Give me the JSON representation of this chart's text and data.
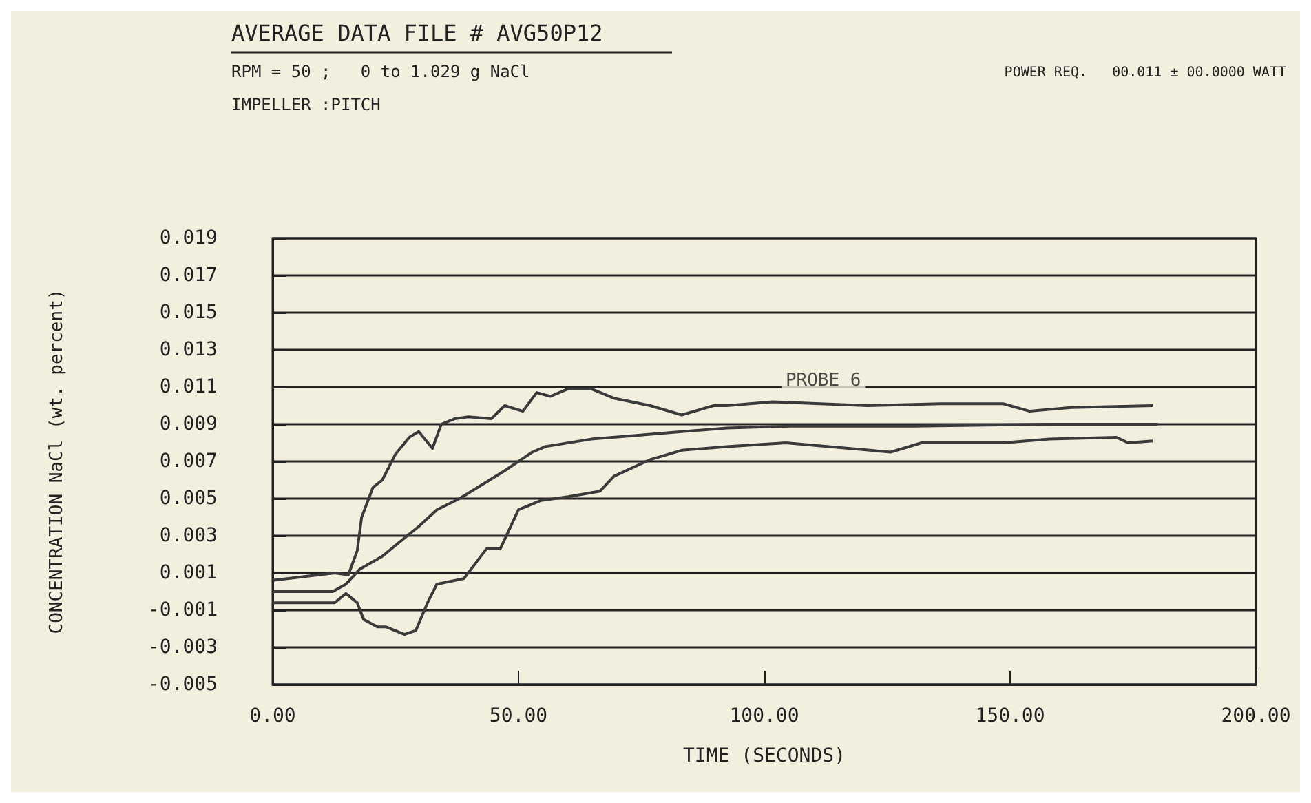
{
  "chart_data": {
    "type": "line",
    "title": "AVERAGE DATA FILE # AVG50P12",
    "subtitle": "RPM = 50 ;   0 to 1.029 g NaCl",
    "annotations": [
      "IMPELLER :PITCH",
      "POWER REQ.   00.011 ± 00.0000 WATT",
      {
        "text": "PROBE 6",
        "x": 112,
        "y": 0.0102
      }
    ],
    "xlabel": "TIME (SECONDS)",
    "ylabel": "CONCENTRATION NaCl (wt. percent)",
    "series": [
      {
        "color": "#3a3a3a",
        "x": [
          0,
          12.6,
          15.4,
          17.2,
          18.1,
          20.4,
          22.3,
          25.0,
          27.8,
          29.7,
          32.5,
          34.3,
          37.1,
          39.8,
          44.5,
          47.2,
          50.9,
          53.7,
          56.5,
          60.1,
          64.8,
          69.4,
          76.8,
          83.2,
          89.7,
          92.4,
          101.7,
          121,
          135.8,
          148.6,
          154,
          162.4,
          179
        ],
        "values": [
          0.0006,
          0.001,
          0.0009,
          0.0022,
          0.004,
          0.0056,
          0.006,
          0.0074,
          0.0083,
          0.0086,
          0.0077,
          0.009,
          0.0093,
          0.0094,
          0.0093,
          0.01,
          0.0097,
          0.0107,
          0.0105,
          0.0109,
          0.0109,
          0.0104,
          0.01,
          0.0095,
          0.01,
          0.01,
          0.0102,
          0.01,
          0.0101,
          0.0101,
          0.0097,
          0.0099,
          0.01
        ]
      },
      {
        "color": "#3a3a3a",
        "x": [
          0,
          12.2,
          14.9,
          17.7,
          22.3,
          26.9,
          29.7,
          33.4,
          38.0,
          41.7,
          47.2,
          52.8,
          55.5,
          64.8,
          74.0,
          83.2,
          92.4,
          105.3,
          130.3,
          158,
          180
        ],
        "values": [
          0.0,
          0.0,
          0.0004,
          0.0012,
          0.0019,
          0.0029,
          0.0035,
          0.0044,
          0.005,
          0.0056,
          0.0065,
          0.0075,
          0.0078,
          0.0082,
          0.0084,
          0.0086,
          0.0088,
          0.0089,
          0.0089,
          0.009,
          0.009
        ]
      },
      {
        "color": "#3a3a3a",
        "x": [
          0,
          12.6,
          14.9,
          17.2,
          18.5,
          21.3,
          23.1,
          26.8,
          29.1,
          31.5,
          33.4,
          38.9,
          43.5,
          46.3,
          50.0,
          54.6,
          60.1,
          66.6,
          69.4,
          76.8,
          83.2,
          92.4,
          104.4,
          125.7,
          132,
          148.6,
          158,
          171.6,
          174,
          179
        ],
        "values": [
          -0.0006,
          -0.0006,
          -0.0001,
          -0.0006,
          -0.0015,
          -0.0019,
          -0.0019,
          -0.0023,
          -0.0021,
          -0.0006,
          0.0004,
          0.0007,
          0.0023,
          0.0023,
          0.0044,
          0.0049,
          0.0051,
          0.0054,
          0.0062,
          0.0071,
          0.0076,
          0.0078,
          0.008,
          0.0075,
          0.008,
          0.008,
          0.0082,
          0.0083,
          0.008,
          0.0081
        ]
      }
    ],
    "xlim": [
      0,
      200
    ],
    "xticks": [
      {
        "value": 0,
        "label": "0.00"
      },
      {
        "value": 50,
        "label": "50.00"
      },
      {
        "value": 100,
        "label": "100.00"
      },
      {
        "value": 150,
        "label": "150.00"
      },
      {
        "value": 200,
        "label": "200.00"
      }
    ],
    "ylim": [
      -0.005,
      0.019
    ],
    "yticks": [
      -0.005,
      -0.003,
      -0.001,
      0.001,
      0.003,
      0.005,
      0.007,
      0.009,
      0.011,
      0.013,
      0.015,
      0.017,
      0.019
    ],
    "grid": "y",
    "marker": "none",
    "line_style": "solid"
  }
}
